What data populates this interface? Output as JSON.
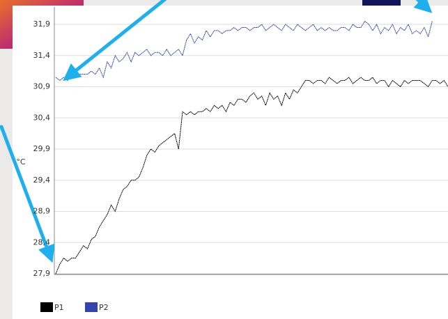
{
  "chart_data": {
    "type": "line",
    "ylabel": "°C",
    "ylim": [
      27.9,
      32.15
    ],
    "yticks": [
      {
        "value": 27.9,
        "label": "27,9"
      },
      {
        "value": 28.4,
        "label": "28,4"
      },
      {
        "value": 28.9,
        "label": "28,9"
      },
      {
        "value": 29.4,
        "label": "29,4"
      },
      {
        "value": 29.9,
        "label": "29,9"
      },
      {
        "value": 30.4,
        "label": "30,4"
      },
      {
        "value": 30.9,
        "label": "30,9"
      },
      {
        "value": 31.4,
        "label": "31,4"
      },
      {
        "value": 31.9,
        "label": "31,9"
      }
    ],
    "grid": true,
    "legend": "bottom",
    "series": [
      {
        "name": "P1",
        "color": "#000000",
        "values": [
          27.9,
          28.05,
          28.15,
          28.1,
          28.15,
          28.15,
          28.25,
          28.35,
          28.3,
          28.45,
          28.5,
          28.65,
          28.75,
          28.85,
          29.0,
          28.9,
          29.1,
          29.25,
          29.3,
          29.4,
          29.4,
          29.45,
          29.6,
          29.8,
          29.9,
          29.85,
          29.95,
          30.0,
          30.05,
          30.1,
          30.15,
          29.9,
          30.5,
          30.45,
          30.5,
          30.45,
          30.5,
          30.5,
          30.55,
          30.5,
          30.6,
          30.55,
          30.6,
          30.5,
          30.65,
          30.6,
          30.7,
          30.7,
          30.65,
          30.75,
          30.8,
          30.7,
          30.75,
          30.6,
          30.8,
          30.7,
          30.75,
          30.6,
          30.8,
          30.7,
          30.85,
          30.8,
          30.9,
          31.0,
          31.0,
          30.95,
          31.0,
          31.0,
          30.95,
          31.05,
          31.0,
          30.95,
          31.0,
          31.0,
          31.05,
          30.95,
          31.0,
          31.05,
          31.0,
          31.0,
          31.05,
          30.95,
          31.0,
          31.0,
          30.9,
          31.0,
          30.95,
          30.9,
          31.0,
          30.95,
          31.0,
          31.0,
          31.0,
          30.95,
          30.9,
          31.0,
          31.0,
          30.95,
          31.0,
          30.9
        ]
      },
      {
        "name": "P2",
        "color": "#3344aa",
        "values": [
          31.05,
          31.0,
          31.05,
          31.0,
          31.1,
          31.1,
          31.1,
          31.1,
          31.1,
          31.15,
          31.1,
          31.2,
          31.05,
          31.3,
          31.2,
          31.4,
          31.3,
          31.35,
          31.45,
          31.3,
          31.45,
          31.4,
          31.45,
          31.5,
          31.4,
          31.45,
          31.45,
          31.4,
          31.5,
          31.4,
          31.45,
          31.5,
          31.4,
          31.65,
          31.75,
          31.6,
          31.7,
          31.65,
          31.8,
          31.7,
          31.8,
          31.8,
          31.75,
          31.8,
          31.8,
          31.85,
          31.8,
          31.85,
          31.85,
          31.8,
          31.85,
          31.85,
          31.9,
          31.8,
          31.85,
          31.9,
          31.85,
          31.8,
          31.9,
          31.85,
          31.8,
          31.9,
          31.85,
          31.8,
          31.85,
          31.9,
          31.8,
          31.85,
          31.8,
          31.85,
          31.8,
          31.8,
          31.85,
          31.85,
          31.8,
          31.9,
          31.85,
          31.85,
          31.95,
          31.9,
          31.8,
          31.9,
          31.75,
          31.85,
          31.8,
          31.9,
          31.75,
          31.85,
          31.8,
          31.9,
          31.75,
          31.8,
          31.75,
          31.85,
          31.7,
          31.95,
          null,
          null,
          null,
          null
        ]
      }
    ]
  }
}
